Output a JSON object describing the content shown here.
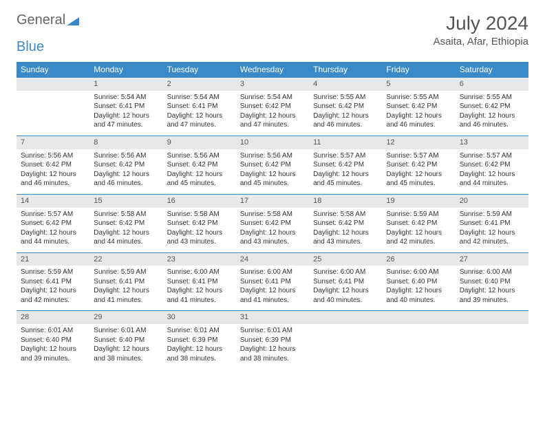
{
  "logo": {
    "general": "General",
    "blue": "Blue"
  },
  "title": "July 2024",
  "location": "Asaita, Afar, Ethiopia",
  "colors": {
    "header_bg": "#3a8ac9",
    "header_text": "#ffffff",
    "daynum_bg": "#e8e8e8",
    "border": "#3a8ac9",
    "text": "#333333",
    "title_text": "#555555"
  },
  "typography": {
    "body_fontsize": 10,
    "daynum_fontsize": 11,
    "header_fontsize": 12,
    "title_fontsize": 28,
    "location_fontsize": 15
  },
  "weekdays": [
    "Sunday",
    "Monday",
    "Tuesday",
    "Wednesday",
    "Thursday",
    "Friday",
    "Saturday"
  ],
  "layout": {
    "columns": 7,
    "rows": 5,
    "first_weekday_offset": 1,
    "days_in_month": 31
  },
  "days": {
    "1": {
      "sunrise": "Sunrise: 5:54 AM",
      "sunset": "Sunset: 6:41 PM",
      "daylight1": "Daylight: 12 hours",
      "daylight2": "and 47 minutes."
    },
    "2": {
      "sunrise": "Sunrise: 5:54 AM",
      "sunset": "Sunset: 6:41 PM",
      "daylight1": "Daylight: 12 hours",
      "daylight2": "and 47 minutes."
    },
    "3": {
      "sunrise": "Sunrise: 5:54 AM",
      "sunset": "Sunset: 6:42 PM",
      "daylight1": "Daylight: 12 hours",
      "daylight2": "and 47 minutes."
    },
    "4": {
      "sunrise": "Sunrise: 5:55 AM",
      "sunset": "Sunset: 6:42 PM",
      "daylight1": "Daylight: 12 hours",
      "daylight2": "and 46 minutes."
    },
    "5": {
      "sunrise": "Sunrise: 5:55 AM",
      "sunset": "Sunset: 6:42 PM",
      "daylight1": "Daylight: 12 hours",
      "daylight2": "and 46 minutes."
    },
    "6": {
      "sunrise": "Sunrise: 5:55 AM",
      "sunset": "Sunset: 6:42 PM",
      "daylight1": "Daylight: 12 hours",
      "daylight2": "and 46 minutes."
    },
    "7": {
      "sunrise": "Sunrise: 5:56 AM",
      "sunset": "Sunset: 6:42 PM",
      "daylight1": "Daylight: 12 hours",
      "daylight2": "and 46 minutes."
    },
    "8": {
      "sunrise": "Sunrise: 5:56 AM",
      "sunset": "Sunset: 6:42 PM",
      "daylight1": "Daylight: 12 hours",
      "daylight2": "and 46 minutes."
    },
    "9": {
      "sunrise": "Sunrise: 5:56 AM",
      "sunset": "Sunset: 6:42 PM",
      "daylight1": "Daylight: 12 hours",
      "daylight2": "and 45 minutes."
    },
    "10": {
      "sunrise": "Sunrise: 5:56 AM",
      "sunset": "Sunset: 6:42 PM",
      "daylight1": "Daylight: 12 hours",
      "daylight2": "and 45 minutes."
    },
    "11": {
      "sunrise": "Sunrise: 5:57 AM",
      "sunset": "Sunset: 6:42 PM",
      "daylight1": "Daylight: 12 hours",
      "daylight2": "and 45 minutes."
    },
    "12": {
      "sunrise": "Sunrise: 5:57 AM",
      "sunset": "Sunset: 6:42 PM",
      "daylight1": "Daylight: 12 hours",
      "daylight2": "and 45 minutes."
    },
    "13": {
      "sunrise": "Sunrise: 5:57 AM",
      "sunset": "Sunset: 6:42 PM",
      "daylight1": "Daylight: 12 hours",
      "daylight2": "and 44 minutes."
    },
    "14": {
      "sunrise": "Sunrise: 5:57 AM",
      "sunset": "Sunset: 6:42 PM",
      "daylight1": "Daylight: 12 hours",
      "daylight2": "and 44 minutes."
    },
    "15": {
      "sunrise": "Sunrise: 5:58 AM",
      "sunset": "Sunset: 6:42 PM",
      "daylight1": "Daylight: 12 hours",
      "daylight2": "and 44 minutes."
    },
    "16": {
      "sunrise": "Sunrise: 5:58 AM",
      "sunset": "Sunset: 6:42 PM",
      "daylight1": "Daylight: 12 hours",
      "daylight2": "and 43 minutes."
    },
    "17": {
      "sunrise": "Sunrise: 5:58 AM",
      "sunset": "Sunset: 6:42 PM",
      "daylight1": "Daylight: 12 hours",
      "daylight2": "and 43 minutes."
    },
    "18": {
      "sunrise": "Sunrise: 5:58 AM",
      "sunset": "Sunset: 6:42 PM",
      "daylight1": "Daylight: 12 hours",
      "daylight2": "and 43 minutes."
    },
    "19": {
      "sunrise": "Sunrise: 5:59 AM",
      "sunset": "Sunset: 6:42 PM",
      "daylight1": "Daylight: 12 hours",
      "daylight2": "and 42 minutes."
    },
    "20": {
      "sunrise": "Sunrise: 5:59 AM",
      "sunset": "Sunset: 6:41 PM",
      "daylight1": "Daylight: 12 hours",
      "daylight2": "and 42 minutes."
    },
    "21": {
      "sunrise": "Sunrise: 5:59 AM",
      "sunset": "Sunset: 6:41 PM",
      "daylight1": "Daylight: 12 hours",
      "daylight2": "and 42 minutes."
    },
    "22": {
      "sunrise": "Sunrise: 5:59 AM",
      "sunset": "Sunset: 6:41 PM",
      "daylight1": "Daylight: 12 hours",
      "daylight2": "and 41 minutes."
    },
    "23": {
      "sunrise": "Sunrise: 6:00 AM",
      "sunset": "Sunset: 6:41 PM",
      "daylight1": "Daylight: 12 hours",
      "daylight2": "and 41 minutes."
    },
    "24": {
      "sunrise": "Sunrise: 6:00 AM",
      "sunset": "Sunset: 6:41 PM",
      "daylight1": "Daylight: 12 hours",
      "daylight2": "and 41 minutes."
    },
    "25": {
      "sunrise": "Sunrise: 6:00 AM",
      "sunset": "Sunset: 6:41 PM",
      "daylight1": "Daylight: 12 hours",
      "daylight2": "and 40 minutes."
    },
    "26": {
      "sunrise": "Sunrise: 6:00 AM",
      "sunset": "Sunset: 6:40 PM",
      "daylight1": "Daylight: 12 hours",
      "daylight2": "and 40 minutes."
    },
    "27": {
      "sunrise": "Sunrise: 6:00 AM",
      "sunset": "Sunset: 6:40 PM",
      "daylight1": "Daylight: 12 hours",
      "daylight2": "and 39 minutes."
    },
    "28": {
      "sunrise": "Sunrise: 6:01 AM",
      "sunset": "Sunset: 6:40 PM",
      "daylight1": "Daylight: 12 hours",
      "daylight2": "and 39 minutes."
    },
    "29": {
      "sunrise": "Sunrise: 6:01 AM",
      "sunset": "Sunset: 6:40 PM",
      "daylight1": "Daylight: 12 hours",
      "daylight2": "and 38 minutes."
    },
    "30": {
      "sunrise": "Sunrise: 6:01 AM",
      "sunset": "Sunset: 6:39 PM",
      "daylight1": "Daylight: 12 hours",
      "daylight2": "and 38 minutes."
    },
    "31": {
      "sunrise": "Sunrise: 6:01 AM",
      "sunset": "Sunset: 6:39 PM",
      "daylight1": "Daylight: 12 hours",
      "daylight2": "and 38 minutes."
    }
  }
}
